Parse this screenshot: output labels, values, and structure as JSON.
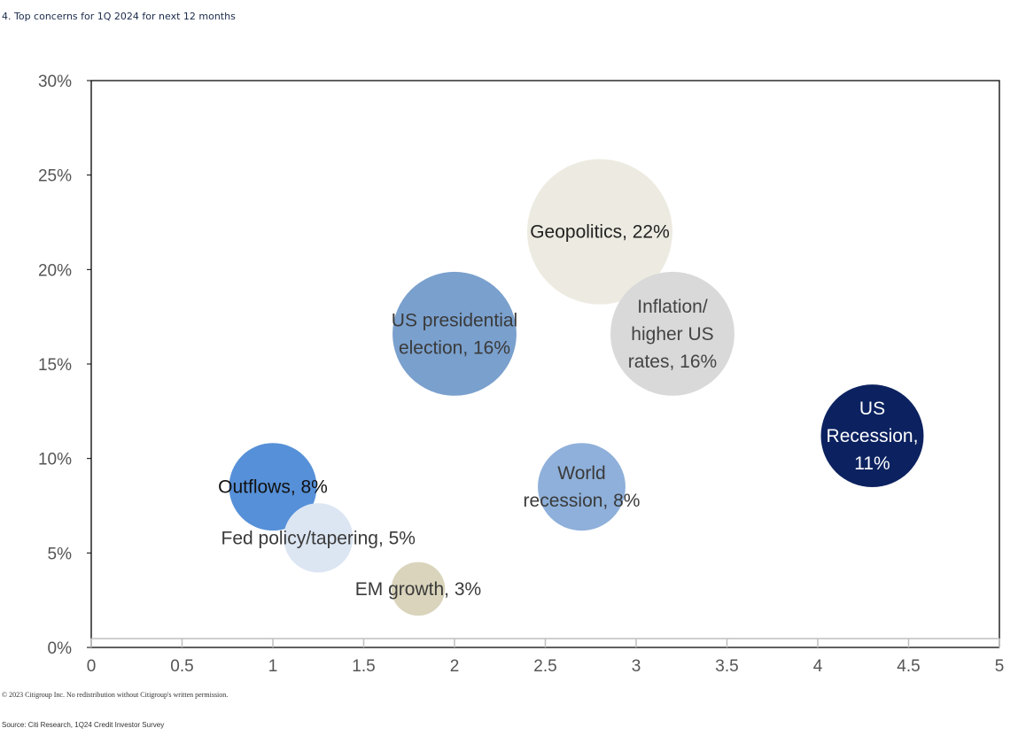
{
  "title": "4. Top concerns for 1Q 2024 for next 12 months",
  "copyright": "© 2023 Citigroup Inc. No redistribution without Citigroup's written permission.",
  "source": "Source: Citi Research, 1Q24 Credit Investor Survey",
  "chart_data": {
    "type": "bubble",
    "title": "4. Top concerns for 1Q 2024 for next 12 months",
    "xlabel": "",
    "ylabel": "",
    "xlim": [
      0,
      5
    ],
    "ylim": [
      0,
      0.3
    ],
    "x_ticks": [
      0,
      0.5,
      1,
      1.5,
      2,
      2.5,
      3,
      3.5,
      4,
      4.5,
      5
    ],
    "x_tick_labels": [
      "0",
      "0.5",
      "1",
      "1.5",
      "2",
      "2.5",
      "3",
      "3.5",
      "4",
      "4.5",
      "5"
    ],
    "y_ticks": [
      0,
      0.05,
      0.1,
      0.15,
      0.2,
      0.25,
      0.3
    ],
    "y_tick_labels": [
      "0%",
      "5%",
      "10%",
      "15%",
      "20%",
      "25%",
      "30%"
    ],
    "grid": false,
    "series": [
      {
        "name": "Geopolitics",
        "x": 2.8,
        "y": 0.22,
        "size": 0.22,
        "color": "#edebe1",
        "text_color": "#222222",
        "label_lines": [
          "Geopolitics, 22%"
        ]
      },
      {
        "name": "US presidential election",
        "x": 2.0,
        "y": 0.166,
        "size": 0.16,
        "color": "#7aa0cd",
        "text_color": "#3a3a3a",
        "label_lines": [
          "US presidential",
          "election, 16%"
        ]
      },
      {
        "name": "Inflation/higher US rates",
        "x": 3.2,
        "y": 0.166,
        "size": 0.16,
        "color": "#d9d9d9",
        "text_color": "#444444",
        "label_lines": [
          "Inflation/",
          "higher US",
          "rates, 16%"
        ]
      },
      {
        "name": "US Recession",
        "x": 4.3,
        "y": 0.112,
        "size": 0.11,
        "color": "#0c2260",
        "text_color": "#ffffff",
        "label_lines": [
          "US",
          "Recession,",
          "11%"
        ]
      },
      {
        "name": "Outflows",
        "x": 1.0,
        "y": 0.085,
        "size": 0.08,
        "color": "#5690d8",
        "text_color": "#111111",
        "label_lines": [
          "Outflows, 8%"
        ]
      },
      {
        "name": "World recession",
        "x": 2.7,
        "y": 0.085,
        "size": 0.08,
        "color": "#8eb0da",
        "text_color": "#3a3a3a",
        "label_lines": [
          "World",
          "recession, 8%"
        ]
      },
      {
        "name": "Fed policy/tapering",
        "x": 1.25,
        "y": 0.058,
        "size": 0.05,
        "color": "#dce6f3",
        "text_color": "#3a3a3a",
        "label_lines": [
          "Fed policy/tapering, 5%"
        ]
      },
      {
        "name": "EM growth",
        "x": 1.8,
        "y": 0.031,
        "size": 0.03,
        "color": "#d9d4bb",
        "text_color": "#3a3a3a",
        "label_lines": [
          "EM growth, 3%"
        ]
      }
    ]
  }
}
